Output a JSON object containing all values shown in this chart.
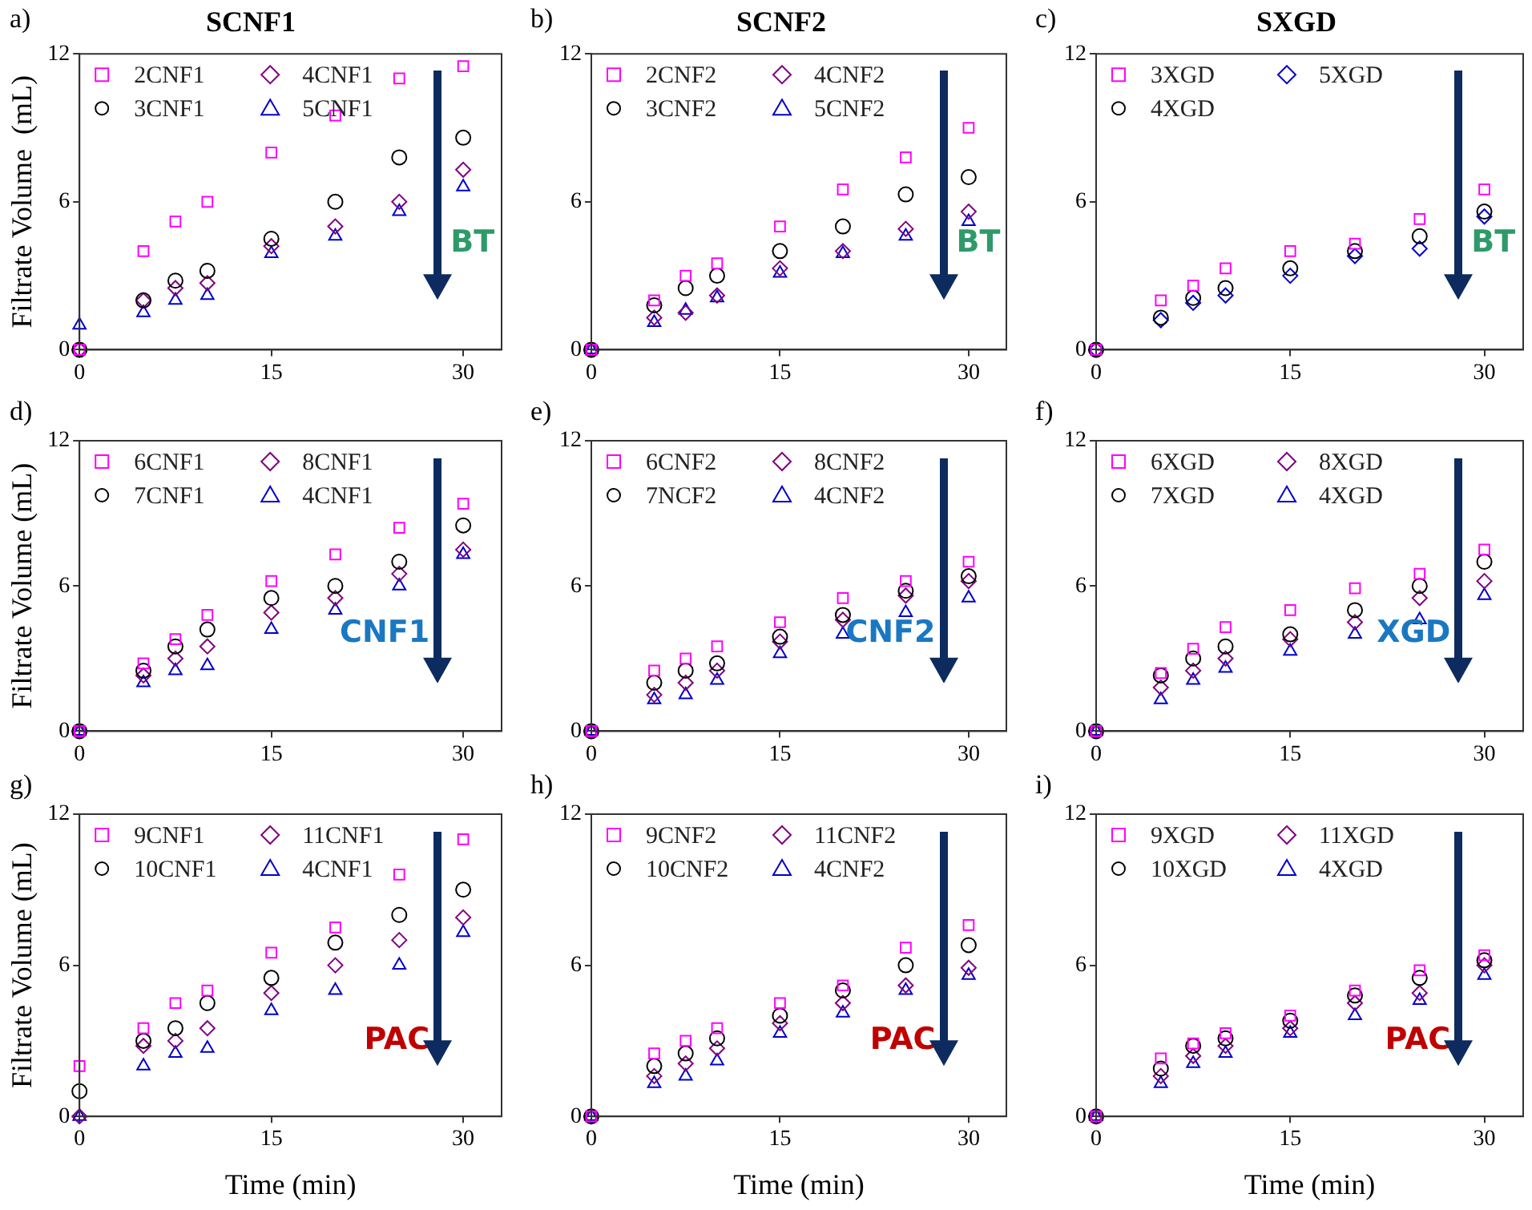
{
  "chart_data": [
    {
      "type": "scatter",
      "title": "SCNF1",
      "ylabel": "Filtrate Volume  (mL)",
      "annotations": [
        "a)",
        "BT"
      ],
      "xlim": [
        0,
        33
      ],
      "xticks": [
        0,
        15,
        30
      ],
      "ylim": [
        0,
        12
      ],
      "yticks": [
        0,
        6,
        12
      ],
      "grid": false,
      "legend": "top left",
      "x": [
        0,
        5,
        7.5,
        10,
        15,
        20,
        25,
        30
      ],
      "series": [
        {
          "name": "2CNF1",
          "color": "#ff00ff",
          "marker": "square",
          "values": [
            0,
            4.0,
            5.2,
            6.0,
            8.0,
            9.5,
            11.0,
            11.5
          ]
        },
        {
          "name": "3CNF1",
          "color": "#000000",
          "marker": "circle",
          "values": [
            0,
            2.0,
            2.8,
            3.2,
            4.5,
            6.0,
            7.8,
            8.6
          ]
        },
        {
          "name": "4CNF1",
          "color": "#800080",
          "marker": "diamond",
          "values": [
            0,
            2.0,
            2.5,
            2.7,
            4.2,
            5.0,
            6.0,
            7.3
          ]
        },
        {
          "name": "5CNF1",
          "color": "#0000cc",
          "marker": "triangle",
          "values": [
            1.0,
            1.5,
            2.0,
            2.2,
            3.9,
            4.6,
            5.6,
            6.6
          ]
        }
      ]
    },
    {
      "type": "scatter",
      "title": "SCNF2",
      "annotations": [
        "b)",
        "BT"
      ],
      "xlim": [
        0,
        33
      ],
      "xticks": [
        0,
        15,
        30
      ],
      "ylim": [
        0,
        12
      ],
      "yticks": [
        0,
        6,
        12
      ],
      "grid": false,
      "legend": "top left",
      "x": [
        0,
        5,
        7.5,
        10,
        15,
        20,
        25,
        30
      ],
      "series": [
        {
          "name": "2CNF2",
          "color": "#ff00ff",
          "marker": "square",
          "values": [
            0,
            2.0,
            3.0,
            3.5,
            5.0,
            6.5,
            7.8,
            9.0
          ]
        },
        {
          "name": "3CNF2",
          "color": "#000000",
          "marker": "circle",
          "values": [
            0,
            1.8,
            2.5,
            3.0,
            4.0,
            5.0,
            6.3,
            7.0
          ]
        },
        {
          "name": "4CNF2",
          "color": "#800080",
          "marker": "diamond",
          "values": [
            0,
            1.3,
            1.5,
            2.2,
            3.3,
            4.0,
            4.9,
            5.6
          ]
        },
        {
          "name": "5CNF2",
          "color": "#0000cc",
          "marker": "triangle",
          "values": [
            0,
            1.1,
            1.6,
            2.1,
            3.1,
            3.9,
            4.6,
            5.2
          ]
        }
      ]
    },
    {
      "type": "scatter",
      "title": "SXGD",
      "annotations": [
        "c)",
        "BT"
      ],
      "xlim": [
        0,
        33
      ],
      "xticks": [
        0,
        15,
        30
      ],
      "ylim": [
        0,
        12
      ],
      "yticks": [
        0,
        6,
        12
      ],
      "grid": false,
      "legend": "top left",
      "x": [
        0,
        5,
        7.5,
        10,
        15,
        20,
        25,
        30
      ],
      "series": [
        {
          "name": "3XGD",
          "color": "#ff00ff",
          "marker": "square",
          "values": [
            0,
            2.0,
            2.6,
            3.3,
            4.0,
            4.3,
            5.3,
            6.5
          ]
        },
        {
          "name": "4XGD",
          "color": "#000000",
          "marker": "circle",
          "values": [
            0,
            1.3,
            2.1,
            2.5,
            3.3,
            4.0,
            4.6,
            5.6
          ]
        },
        {
          "name": "5XGD",
          "color": "#0000cc",
          "marker": "diamond",
          "values": [
            0,
            1.2,
            1.9,
            2.2,
            3.0,
            3.8,
            4.1,
            5.4
          ]
        }
      ]
    },
    {
      "type": "scatter",
      "ylabel": "Filtrate Volume (mL)",
      "annotations": [
        "d)",
        "CNF1"
      ],
      "xlim": [
        0,
        33
      ],
      "xticks": [
        0,
        15,
        30
      ],
      "ylim": [
        0,
        12
      ],
      "yticks": [
        0,
        6,
        12
      ],
      "grid": false,
      "legend": "top left",
      "x": [
        0,
        5,
        7.5,
        10,
        15,
        20,
        25,
        30
      ],
      "series": [
        {
          "name": "6CNF1",
          "color": "#ff00ff",
          "marker": "square",
          "values": [
            0,
            2.8,
            3.8,
            4.8,
            6.2,
            7.3,
            8.4,
            9.4
          ]
        },
        {
          "name": "7CNF1",
          "color": "#000000",
          "marker": "circle",
          "values": [
            0,
            2.5,
            3.5,
            4.2,
            5.5,
            6.0,
            7.0,
            8.5
          ]
        },
        {
          "name": "8CNF1",
          "color": "#800080",
          "marker": "diamond",
          "values": [
            0,
            2.3,
            3.0,
            3.5,
            4.9,
            5.5,
            6.5,
            7.5
          ]
        },
        {
          "name": "4CNF1",
          "color": "#0000cc",
          "marker": "triangle",
          "values": [
            0,
            2.0,
            2.5,
            2.7,
            4.2,
            5.0,
            6.0,
            7.3
          ]
        }
      ]
    },
    {
      "type": "scatter",
      "annotations": [
        "e)",
        "CNF2"
      ],
      "xlim": [
        0,
        33
      ],
      "xticks": [
        0,
        15,
        30
      ],
      "ylim": [
        0,
        12
      ],
      "yticks": [
        0,
        6,
        12
      ],
      "grid": false,
      "legend": "top left",
      "x": [
        0,
        5,
        7.5,
        10,
        15,
        20,
        25,
        30
      ],
      "series": [
        {
          "name": "6CNF2",
          "color": "#ff00ff",
          "marker": "square",
          "values": [
            0,
            2.5,
            3.0,
            3.5,
            4.5,
            5.5,
            6.2,
            7.0
          ]
        },
        {
          "name": "7NCF2",
          "color": "#000000",
          "marker": "circle",
          "values": [
            0,
            2.0,
            2.5,
            2.8,
            3.9,
            4.8,
            5.8,
            6.4
          ]
        },
        {
          "name": "8CNF2",
          "color": "#800080",
          "marker": "diamond",
          "values": [
            0,
            1.5,
            2.0,
            2.5,
            3.7,
            4.6,
            5.6,
            6.2
          ]
        },
        {
          "name": "4CNF2",
          "color": "#0000cc",
          "marker": "triangle",
          "values": [
            0,
            1.3,
            1.5,
            2.1,
            3.2,
            4.0,
            4.9,
            5.5
          ]
        }
      ]
    },
    {
      "type": "scatter",
      "annotations": [
        "f)",
        "XGD"
      ],
      "xlim": [
        0,
        33
      ],
      "xticks": [
        0,
        15,
        30
      ],
      "ylim": [
        0,
        12
      ],
      "yticks": [
        0,
        6,
        12
      ],
      "grid": false,
      "legend": "top left",
      "x": [
        0,
        5,
        7.5,
        10,
        15,
        20,
        25,
        30
      ],
      "series": [
        {
          "name": "6XGD",
          "color": "#ff00ff",
          "marker": "square",
          "values": [
            0,
            2.4,
            3.4,
            4.3,
            5.0,
            5.9,
            6.5,
            7.5
          ]
        },
        {
          "name": "7XGD",
          "color": "#000000",
          "marker": "circle",
          "values": [
            0,
            2.3,
            3.0,
            3.5,
            4.0,
            5.0,
            6.0,
            7.0
          ]
        },
        {
          "name": "8XGD",
          "color": "#800080",
          "marker": "diamond",
          "values": [
            0,
            1.8,
            2.5,
            3.0,
            3.8,
            4.5,
            5.5,
            6.2
          ]
        },
        {
          "name": "4XGD",
          "color": "#0000cc",
          "marker": "triangle",
          "values": [
            0,
            1.3,
            2.1,
            2.6,
            3.3,
            4.0,
            4.6,
            5.6
          ]
        }
      ]
    },
    {
      "type": "scatter",
      "xlabel": "Time (min)",
      "ylabel": "Filtrate Volume (mL)",
      "annotations": [
        "g)",
        "PAC"
      ],
      "xlim": [
        0,
        33
      ],
      "xticks": [
        0,
        15,
        30
      ],
      "ylim": [
        0,
        12
      ],
      "yticks": [
        0,
        6,
        12
      ],
      "grid": false,
      "legend": "top left",
      "x": [
        0,
        5,
        7.5,
        10,
        15,
        20,
        25,
        30
      ],
      "series": [
        {
          "name": "9CNF1",
          "color": "#ff00ff",
          "marker": "square",
          "values": [
            2.0,
            3.5,
            4.5,
            5.0,
            6.5,
            7.5,
            9.6,
            11.0
          ]
        },
        {
          "name": "10CNF1",
          "color": "#000000",
          "marker": "circle",
          "values": [
            1.0,
            3.0,
            3.5,
            4.5,
            5.5,
            6.9,
            8.0,
            9.0
          ]
        },
        {
          "name": "11CNF1",
          "color": "#800080",
          "marker": "diamond",
          "values": [
            0,
            2.8,
            3.0,
            3.5,
            4.9,
            6.0,
            7.0,
            7.9
          ]
        },
        {
          "name": "4CNF1",
          "color": "#0000cc",
          "marker": "triangle",
          "values": [
            0,
            2.0,
            2.5,
            2.7,
            4.2,
            5.0,
            6.0,
            7.3
          ]
        }
      ]
    },
    {
      "type": "scatter",
      "xlabel": "Time (min)",
      "annotations": [
        "h)",
        "PAC"
      ],
      "xlim": [
        0,
        33
      ],
      "xticks": [
        0,
        15,
        30
      ],
      "ylim": [
        0,
        12
      ],
      "yticks": [
        0,
        6,
        12
      ],
      "grid": false,
      "legend": "top left",
      "x": [
        0,
        5,
        7.5,
        10,
        15,
        20,
        25,
        30
      ],
      "series": [
        {
          "name": "9CNF2",
          "color": "#ff00ff",
          "marker": "square",
          "values": [
            0,
            2.5,
            3.0,
            3.5,
            4.5,
            5.2,
            6.7,
            7.6
          ]
        },
        {
          "name": "10CNF2",
          "color": "#000000",
          "marker": "circle",
          "values": [
            0,
            2.0,
            2.5,
            3.1,
            4.0,
            5.0,
            6.0,
            6.8
          ]
        },
        {
          "name": "11CNF2",
          "color": "#800080",
          "marker": "diamond",
          "values": [
            0,
            1.6,
            2.1,
            2.7,
            3.7,
            4.5,
            5.2,
            5.9
          ]
        },
        {
          "name": "4CNF2",
          "color": "#0000cc",
          "marker": "triangle",
          "values": [
            0,
            1.3,
            1.6,
            2.2,
            3.3,
            4.1,
            5.0,
            5.6
          ]
        }
      ]
    },
    {
      "type": "scatter",
      "xlabel": "Time (min)",
      "annotations": [
        "i)",
        "PAC"
      ],
      "xlim": [
        0,
        33
      ],
      "xticks": [
        0,
        15,
        30
      ],
      "ylim": [
        0,
        12
      ],
      "yticks": [
        0,
        6,
        12
      ],
      "grid": false,
      "legend": "top left",
      "x": [
        0,
        5,
        7.5,
        10,
        15,
        20,
        25,
        30
      ],
      "series": [
        {
          "name": "9XGD",
          "color": "#ff00ff",
          "marker": "square",
          "values": [
            0,
            2.3,
            2.9,
            3.3,
            4.0,
            5.0,
            5.8,
            6.4
          ]
        },
        {
          "name": "10XGD",
          "color": "#000000",
          "marker": "circle",
          "values": [
            0,
            1.9,
            2.8,
            3.1,
            3.8,
            4.8,
            5.5,
            6.2
          ]
        },
        {
          "name": "11XGD",
          "color": "#800080",
          "marker": "diamond",
          "values": [
            0,
            1.6,
            2.4,
            2.8,
            3.5,
            4.5,
            4.9,
            6.0
          ]
        },
        {
          "name": "4XGD",
          "color": "#0000cc",
          "marker": "triangle",
          "values": [
            0,
            1.3,
            2.1,
            2.5,
            3.3,
            4.0,
            4.6,
            5.6
          ]
        }
      ]
    }
  ]
}
